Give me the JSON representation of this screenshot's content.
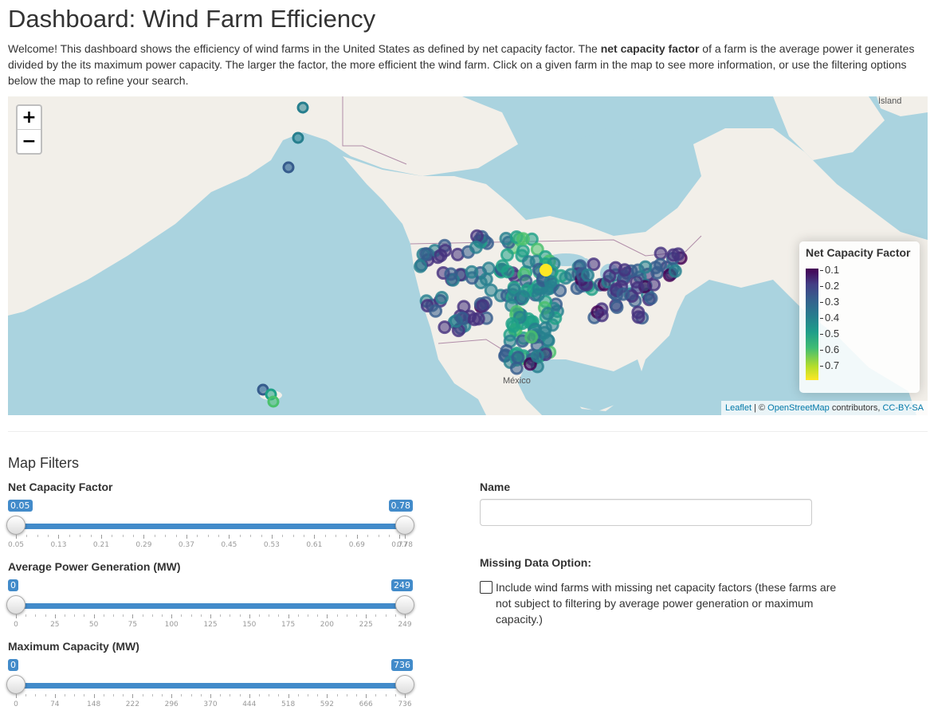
{
  "header": {
    "title": "Dashboard: Wind Farm Efficiency",
    "intro_part1": "Welcome! This dashboard shows the efficiency of wind farms in the United States as defined by net capacity factor. The ",
    "intro_bold": "net capacity factor",
    "intro_part2": " of a farm is the average power it generates divided by the its maximum power capacity. The larger the factor, the more efficient the wind farm. Click on a given farm in the map to see more information, or use the filtering options below the map to refine your search."
  },
  "map": {
    "zoom_in_label": "+",
    "zoom_out_label": "−",
    "labels": {
      "mexico": "México",
      "island": "Ísland"
    },
    "legend": {
      "title": "Net Capacity Factor",
      "ticks": [
        "0.1",
        "0.2",
        "0.3",
        "0.4",
        "0.5",
        "0.6",
        "0.7"
      ]
    },
    "attribution": {
      "leaflet": "Leaflet",
      "sep": " | © ",
      "osm": "OpenStreetMap",
      "mid": " contributors, ",
      "license": "CC-BY-SA"
    },
    "colors": {
      "water": "#aad3df",
      "land": "#f2efe9",
      "low": "#440154",
      "mid": "#287c8e",
      "high": "#fde725"
    }
  },
  "filters": {
    "section_title": "Map Filters",
    "ncf": {
      "label": "Net Capacity Factor",
      "min": 0.05,
      "max": 0.78,
      "from_label": "0.05",
      "to_label": "0.78",
      "tick_labels": [
        "0.05",
        "0.13",
        "0.21",
        "0.29",
        "0.37",
        "0.45",
        "0.53",
        "0.61",
        "0.69",
        "0.77",
        "0.78"
      ]
    },
    "power": {
      "label": "Average Power Generation (MW)",
      "min": 0,
      "max": 249,
      "from_label": "0",
      "to_label": "249",
      "tick_labels": [
        "0",
        "25",
        "50",
        "75",
        "100",
        "125",
        "150",
        "175",
        "200",
        "225",
        "249"
      ]
    },
    "capacity": {
      "label": "Maximum Capacity (MW)",
      "min": 0,
      "max": 736,
      "from_label": "0",
      "to_label": "736",
      "tick_labels": [
        "0",
        "74",
        "148",
        "222",
        "296",
        "370",
        "444",
        "518",
        "592",
        "666",
        "736"
      ]
    },
    "name": {
      "label": "Name",
      "value": "",
      "placeholder": ""
    },
    "missing": {
      "label": "Missing Data Option:",
      "checkbox_label": "Include wind farms with missing net capacity factors (these farms are not subject to filtering by average power generation or maximum capacity.)",
      "checked": false
    }
  }
}
